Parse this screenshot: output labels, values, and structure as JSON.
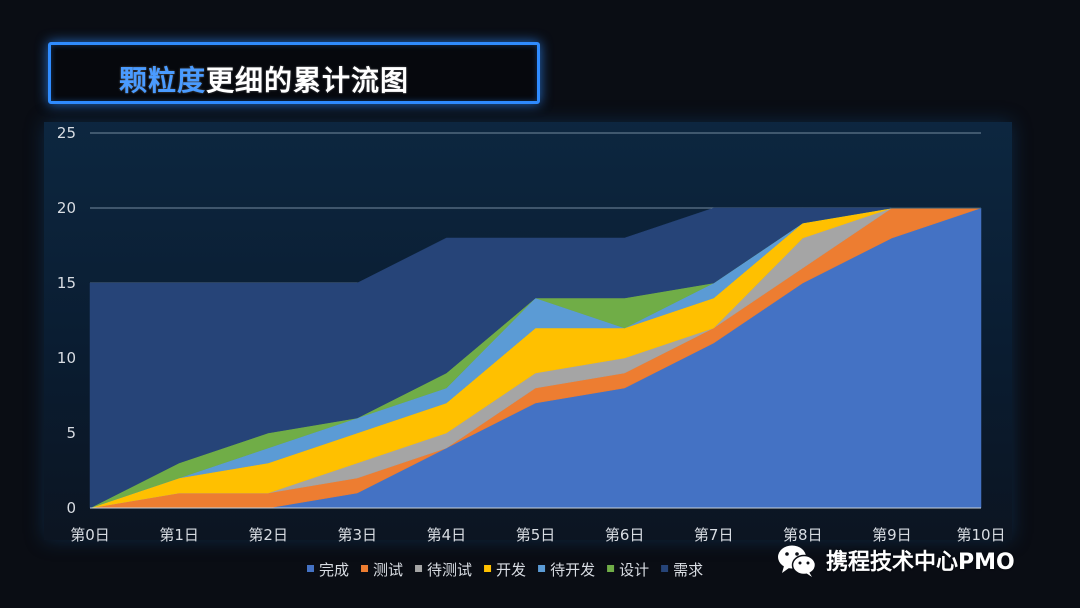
{
  "title": {
    "accent": "颗粒度",
    "rest": "更细的累计流图"
  },
  "watermark": {
    "text": "携程技术中心PMO",
    "icon": "wechat-icon"
  },
  "chart_data": {
    "type": "area",
    "stacked": true,
    "categories": [
      "第0日",
      "第1日",
      "第2日",
      "第3日",
      "第4日",
      "第5日",
      "第6日",
      "第7日",
      "第8日",
      "第9日",
      "第10日"
    ],
    "ylim": [
      0,
      25
    ],
    "yticks": [
      0,
      5,
      10,
      15,
      20,
      25
    ],
    "grid": "horizontal",
    "legend_position": "bottom",
    "series": [
      {
        "name": "完成",
        "color": "#4472c4",
        "values": [
          0,
          0,
          0,
          1,
          4,
          7,
          8,
          11,
          15,
          18,
          20
        ]
      },
      {
        "name": "测试",
        "color": "#ed7d31",
        "values": [
          0,
          1,
          1,
          1,
          0,
          1,
          1,
          1,
          1,
          2,
          0
        ]
      },
      {
        "name": "待测试",
        "color": "#a5a5a5",
        "values": [
          0,
          0,
          0,
          1,
          1,
          1,
          1,
          0,
          2,
          0,
          0
        ]
      },
      {
        "name": "开发",
        "color": "#ffc000",
        "values": [
          0,
          1,
          2,
          2,
          2,
          3,
          2,
          2,
          1,
          0,
          0
        ]
      },
      {
        "name": "待开发",
        "color": "#5b9bd5",
        "values": [
          0,
          0,
          1,
          1,
          1,
          2,
          0,
          1,
          0,
          0,
          0
        ]
      },
      {
        "name": "设计",
        "color": "#70ad47",
        "values": [
          0,
          1,
          1,
          0,
          1,
          0,
          2,
          0,
          0,
          0,
          0
        ]
      },
      {
        "name": "需求",
        "color": "#264478",
        "values": [
          15,
          12,
          10,
          9,
          9,
          4,
          4,
          5,
          1,
          0,
          0
        ]
      }
    ]
  }
}
